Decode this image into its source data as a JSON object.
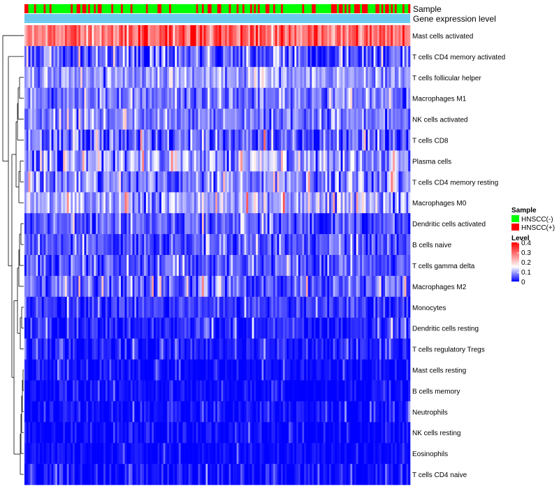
{
  "chart_data": {
    "type": "heatmap",
    "title": "",
    "annotation_tracks": [
      {
        "name": "Sample",
        "label": "Sample"
      },
      {
        "name": "Gene expression level",
        "label": "Gene expression level"
      }
    ],
    "rows": [
      {
        "label": "Mast cells activated",
        "mean": 0.29,
        "spread": 0.1
      },
      {
        "label": "T cells CD4 memory activated",
        "mean": 0.05,
        "spread": 0.07
      },
      {
        "label": "T cells follicular helper",
        "mean": 0.09,
        "spread": 0.05
      },
      {
        "label": "Macrophages M1",
        "mean": 0.07,
        "spread": 0.05
      },
      {
        "label": "NK cells activated",
        "mean": 0.07,
        "spread": 0.05
      },
      {
        "label": "T cells CD8",
        "mean": 0.06,
        "spread": 0.08
      },
      {
        "label": "Plasma cells",
        "mean": 0.09,
        "spread": 0.08
      },
      {
        "label": "T cells CD4 memory resting",
        "mean": 0.08,
        "spread": 0.08
      },
      {
        "label": "Macrophages M0",
        "mean": 0.1,
        "spread": 0.07
      },
      {
        "label": "Dendritic cells activated",
        "mean": 0.05,
        "spread": 0.05
      },
      {
        "label": "B cells naive",
        "mean": 0.05,
        "spread": 0.05
      },
      {
        "label": "T cells gamma delta",
        "mean": 0.05,
        "spread": 0.05
      },
      {
        "label": "Macrophages M2",
        "mean": 0.06,
        "spread": 0.06
      },
      {
        "label": "Monocytes",
        "mean": 0.03,
        "spread": 0.04
      },
      {
        "label": "Dendritic cells resting",
        "mean": 0.02,
        "spread": 0.04
      },
      {
        "label": "T cells regulatory  Tregs",
        "mean": 0.015,
        "spread": 0.04
      },
      {
        "label": "Mast cells resting",
        "mean": 0.004,
        "spread": 0.03
      },
      {
        "label": "B cells memory",
        "mean": 0.004,
        "spread": 0.03
      },
      {
        "label": "Neutrophils",
        "mean": 0.005,
        "spread": 0.03
      },
      {
        "label": "NK cells resting",
        "mean": 0.004,
        "spread": 0.03
      },
      {
        "label": "Eosinophils",
        "mean": 0.003,
        "spread": 0.02
      },
      {
        "label": "T cells CD4 naive",
        "mean": 0.006,
        "spread": 0.035
      }
    ],
    "n_samples": 200,
    "sample_groups": [
      "HNSCC(-)",
      "HNSCC(+)"
    ],
    "sample_group_fraction_positive": 0.35,
    "color_scale": {
      "min": 0,
      "mid": 0.15,
      "max": 0.4,
      "low_color": "#0000ff",
      "mid_color": "#ffffff",
      "high_color": "#ff0000"
    },
    "row_dendrogram": true,
    "legend_placement": "right"
  },
  "legend": {
    "sample": {
      "title": "Sample",
      "items": [
        {
          "label": "HNSCC(-)",
          "color": "#00ff00"
        },
        {
          "label": "HNSCC(+)",
          "color": "#ff0000"
        }
      ]
    },
    "level": {
      "title": "Level",
      "ticks": [
        "0.4",
        "0.3",
        "0.2",
        "0.1",
        "0"
      ],
      "tick_values": [
        0.4,
        0.3,
        0.2,
        0.1,
        0
      ]
    }
  },
  "colors": {
    "track_gene_expression": "#6ccaf0",
    "group_negative": "#00ff00",
    "group_positive": "#ff0000"
  }
}
